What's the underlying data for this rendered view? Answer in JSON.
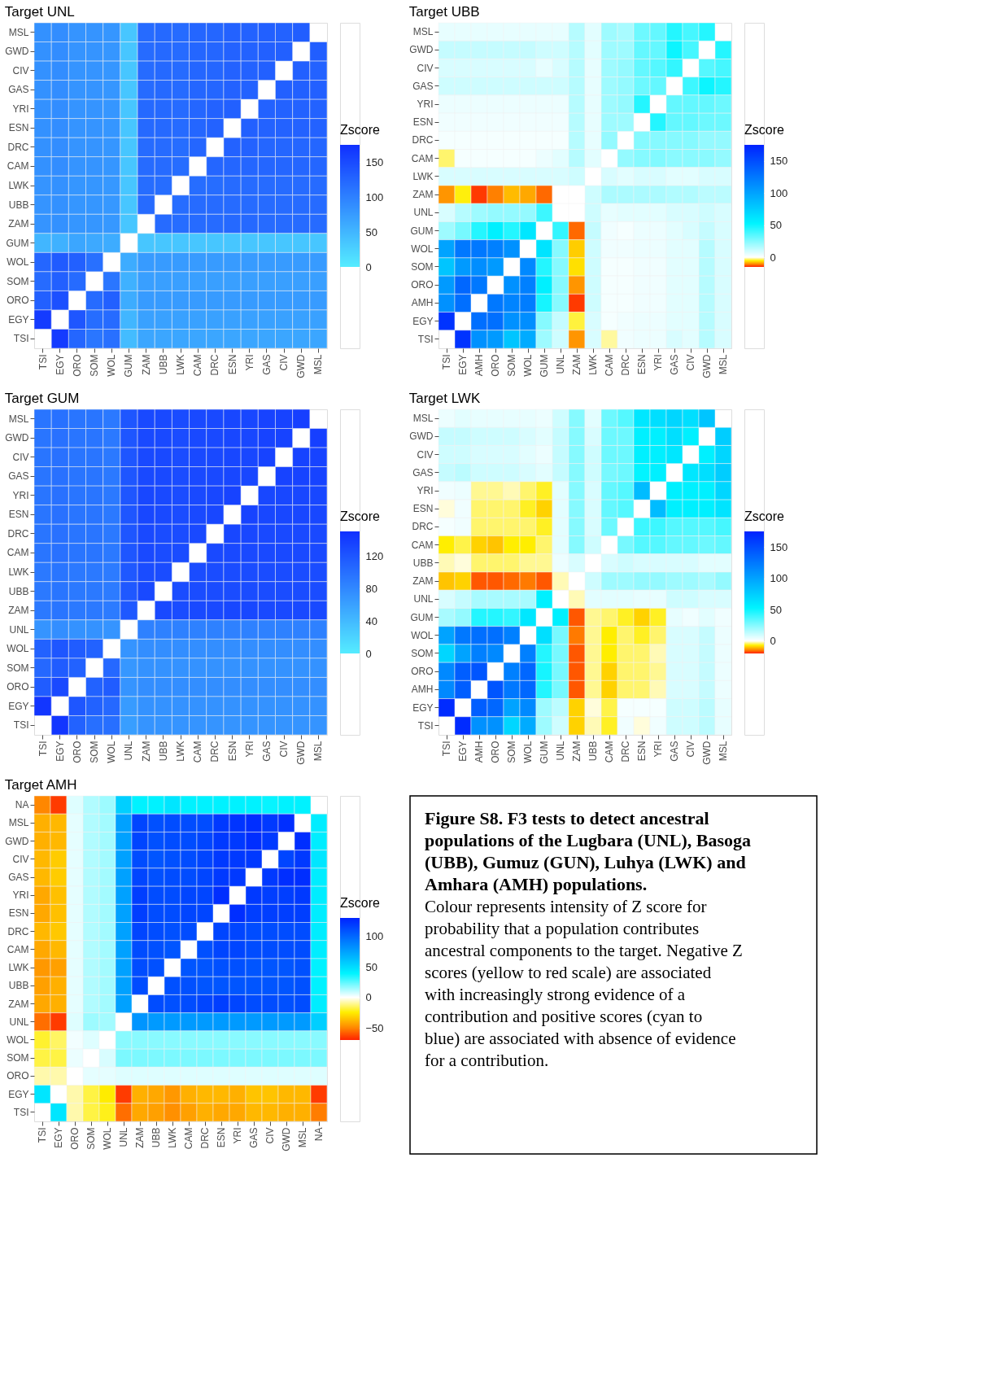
{
  "chart_data": [
    {
      "type": "heatmap",
      "title": "Target UNL",
      "clabel": "Zscore",
      "clim": [
        0,
        175
      ],
      "cticks": [
        0,
        50,
        100,
        150
      ],
      "categories": [
        "TSI",
        "EGY",
        "ORO",
        "SOM",
        "WOL",
        "GUM",
        "ZAM",
        "UBB",
        "LWK",
        "CAM",
        "DRC",
        "ESN",
        "YRI",
        "GAS",
        "CIV",
        "GWD",
        "MSL"
      ],
      "y_categories": [
        "MSL",
        "GWD",
        "CIV",
        "GAS",
        "YRI",
        "ESN",
        "DRC",
        "CAM",
        "LWK",
        "UBB",
        "ZAM",
        "GUM",
        "WOL",
        "SOM",
        "ORO",
        "EGY",
        "TSI"
      ],
      "cells": [
        [
          85,
          88,
          82,
          82,
          80,
          35,
          120,
          122,
          120,
          125,
          125,
          128,
          128,
          130,
          128,
          132,
          null
        ],
        [
          85,
          88,
          82,
          82,
          80,
          35,
          120,
          122,
          120,
          125,
          125,
          128,
          128,
          130,
          130,
          null,
          132
        ],
        [
          85,
          88,
          82,
          82,
          80,
          35,
          120,
          122,
          120,
          125,
          125,
          128,
          128,
          130,
          null,
          130,
          128
        ],
        [
          85,
          88,
          82,
          82,
          80,
          35,
          120,
          122,
          120,
          125,
          125,
          128,
          128,
          null,
          130,
          130,
          130
        ],
        [
          85,
          88,
          82,
          82,
          80,
          35,
          122,
          122,
          120,
          125,
          128,
          130,
          null,
          128,
          128,
          128,
          128
        ],
        [
          85,
          88,
          82,
          82,
          80,
          35,
          122,
          122,
          120,
          125,
          128,
          null,
          130,
          128,
          128,
          128,
          128
        ],
        [
          85,
          88,
          82,
          82,
          80,
          35,
          120,
          120,
          118,
          125,
          null,
          128,
          128,
          125,
          125,
          125,
          125
        ],
        [
          85,
          88,
          82,
          82,
          80,
          35,
          120,
          120,
          118,
          null,
          125,
          125,
          125,
          125,
          125,
          125,
          125
        ],
        [
          82,
          85,
          80,
          80,
          78,
          35,
          118,
          118,
          null,
          118,
          118,
          120,
          120,
          120,
          120,
          120,
          120
        ],
        [
          82,
          85,
          80,
          80,
          78,
          35,
          120,
          null,
          118,
          120,
          120,
          120,
          120,
          120,
          120,
          120,
          120
        ],
        [
          82,
          85,
          80,
          80,
          78,
          35,
          null,
          120,
          118,
          120,
          120,
          122,
          122,
          120,
          120,
          120,
          120
        ],
        [
          50,
          55,
          65,
          62,
          60,
          null,
          35,
          35,
          35,
          35,
          35,
          35,
          35,
          35,
          35,
          35,
          35
        ],
        [
          125,
          135,
          130,
          115,
          null,
          60,
          75,
          75,
          75,
          75,
          75,
          75,
          75,
          75,
          75,
          75,
          75
        ],
        [
          120,
          130,
          120,
          null,
          110,
          55,
          72,
          72,
          72,
          72,
          72,
          72,
          72,
          72,
          72,
          72,
          72
        ],
        [
          130,
          145,
          null,
          120,
          130,
          60,
          75,
          75,
          75,
          75,
          75,
          75,
          75,
          75,
          75,
          75,
          75
        ],
        [
          165,
          null,
          140,
          118,
          120,
          50,
          70,
          70,
          70,
          70,
          70,
          70,
          70,
          70,
          70,
          70,
          70
        ],
        [
          null,
          165,
          125,
          110,
          115,
          45,
          65,
          65,
          65,
          65,
          65,
          65,
          65,
          65,
          65,
          65,
          65
        ]
      ]
    },
    {
      "type": "heatmap",
      "title": "Target UBB",
      "clabel": "Zscore",
      "clim": [
        -15,
        175
      ],
      "cticks": [
        0,
        50,
        100,
        150
      ],
      "categories": [
        "TSI",
        "EGY",
        "AMH",
        "ORO",
        "SOM",
        "WOL",
        "GUM",
        "UNL",
        "ZAM",
        "LWK",
        "CAM",
        "DRC",
        "ESN",
        "YRI",
        "GAS",
        "CIV",
        "GWD",
        "MSL"
      ],
      "y_categories": [
        "MSL",
        "GWD",
        "CIV",
        "GAS",
        "YRI",
        "ESN",
        "DRC",
        "CAM",
        "LWK",
        "ZAM",
        "UNL",
        "GUM",
        "WOL",
        "SOM",
        "ORO",
        "AMH",
        "EGY",
        "TSI"
      ],
      "cells": [
        [
          5,
          5,
          5,
          5,
          5,
          5,
          5,
          5,
          15,
          6,
          20,
          18,
          30,
          32,
          45,
          38,
          45,
          null
        ],
        [
          12,
          12,
          12,
          12,
          12,
          12,
          10,
          10,
          15,
          6,
          20,
          20,
          32,
          32,
          50,
          38,
          null,
          45
        ],
        [
          8,
          8,
          8,
          8,
          8,
          8,
          5,
          8,
          15,
          5,
          20,
          22,
          32,
          35,
          42,
          null,
          35,
          38
        ],
        [
          10,
          10,
          10,
          10,
          10,
          10,
          10,
          10,
          15,
          5,
          20,
          22,
          30,
          32,
          null,
          40,
          50,
          45
        ],
        [
          4,
          4,
          4,
          4,
          4,
          4,
          4,
          4,
          15,
          5,
          20,
          22,
          45,
          null,
          32,
          32,
          32,
          30
        ],
        [
          3,
          3,
          3,
          3,
          3,
          3,
          3,
          3,
          15,
          5,
          20,
          20,
          null,
          45,
          32,
          32,
          30,
          30
        ],
        [
          2,
          2,
          2,
          2,
          2,
          2,
          2,
          2,
          15,
          5,
          22,
          null,
          25,
          25,
          25,
          25,
          22,
          22
        ],
        [
          -3,
          2,
          2,
          2,
          2,
          2,
          4,
          6,
          15,
          6,
          null,
          22,
          25,
          26,
          24,
          24,
          24,
          22
        ],
        [
          8,
          8,
          8,
          8,
          8,
          8,
          8,
          8,
          10,
          null,
          8,
          6,
          8,
          8,
          6,
          6,
          8,
          8
        ],
        [
          -10,
          -5,
          -14,
          -11,
          -8,
          -9,
          -12,
          0,
          null,
          10,
          17,
          17,
          17,
          17,
          16,
          16,
          14,
          14
        ],
        [
          8,
          15,
          20,
          22,
          22,
          22,
          40,
          null,
          0,
          10,
          5,
          6,
          6,
          6,
          8,
          8,
          10,
          8
        ],
        [
          20,
          28,
          45,
          55,
          45,
          60,
          null,
          42,
          -12,
          12,
          3,
          2,
          4,
          4,
          6,
          8,
          12,
          8
        ],
        [
          100,
          125,
          125,
          120,
          110,
          null,
          62,
          25,
          -7,
          10,
          3,
          3,
          4,
          4,
          6,
          6,
          15,
          8
        ],
        [
          80,
          105,
          112,
          105,
          null,
          115,
          45,
          25,
          -6,
          10,
          2,
          2,
          3,
          3,
          6,
          6,
          15,
          8
        ],
        [
          105,
          135,
          125,
          null,
          110,
          120,
          55,
          25,
          -10,
          10,
          2,
          2,
          3,
          3,
          6,
          6,
          15,
          8
        ],
        [
          110,
          130,
          null,
          125,
          118,
          122,
          48,
          25,
          -14,
          10,
          2,
          2,
          3,
          3,
          6,
          6,
          15,
          8
        ],
        [
          165,
          null,
          130,
          130,
          110,
          112,
          25,
          12,
          -4,
          8,
          2,
          3,
          4,
          4,
          6,
          6,
          15,
          8
        ],
        [
          null,
          165,
          110,
          105,
          80,
          95,
          20,
          10,
          -10,
          8,
          -2,
          3,
          4,
          4,
          8,
          6,
          15,
          8
        ]
      ]
    },
    {
      "type": "heatmap",
      "title": "Target GUM",
      "clabel": "Zscore",
      "clim": [
        0,
        150
      ],
      "cticks": [
        0,
        40,
        80,
        120
      ],
      "categories": [
        "TSI",
        "EGY",
        "ORO",
        "SOM",
        "WOL",
        "UNL",
        "ZAM",
        "UBB",
        "LWK",
        "CAM",
        "DRC",
        "ESN",
        "YRI",
        "GAS",
        "CIV",
        "GWD",
        "MSL"
      ],
      "y_categories": [
        "MSL",
        "GWD",
        "CIV",
        "GAS",
        "YRI",
        "ESN",
        "DRC",
        "CAM",
        "LWK",
        "UBB",
        "ZAM",
        "UNL",
        "WOL",
        "SOM",
        "ORO",
        "EGY",
        "TSI"
      ],
      "cells": [
        [
          95,
          98,
          95,
          95,
          92,
          120,
          130,
          130,
          128,
          130,
          130,
          132,
          132,
          135,
          135,
          138,
          null
        ],
        [
          95,
          98,
          95,
          95,
          92,
          120,
          130,
          130,
          128,
          130,
          130,
          132,
          132,
          135,
          135,
          null,
          138
        ],
        [
          95,
          98,
          95,
          95,
          92,
          120,
          130,
          130,
          128,
          130,
          130,
          132,
          132,
          135,
          null,
          135,
          135
        ],
        [
          95,
          98,
          95,
          95,
          92,
          120,
          130,
          130,
          128,
          130,
          130,
          132,
          132,
          null,
          135,
          135,
          135
        ],
        [
          95,
          98,
          95,
          95,
          92,
          120,
          132,
          130,
          128,
          130,
          132,
          135,
          null,
          132,
          132,
          132,
          132
        ],
        [
          95,
          98,
          95,
          95,
          92,
          120,
          132,
          130,
          128,
          130,
          132,
          null,
          135,
          132,
          132,
          132,
          132
        ],
        [
          95,
          98,
          95,
          95,
          92,
          120,
          130,
          128,
          128,
          130,
          null,
          132,
          132,
          130,
          130,
          130,
          130
        ],
        [
          95,
          98,
          95,
          95,
          92,
          120,
          130,
          128,
          128,
          null,
          130,
          130,
          130,
          130,
          130,
          130,
          130
        ],
        [
          92,
          95,
          92,
          92,
          90,
          118,
          128,
          128,
          null,
          128,
          128,
          128,
          128,
          128,
          128,
          128,
          128
        ],
        [
          92,
          95,
          92,
          92,
          90,
          118,
          130,
          null,
          128,
          128,
          128,
          128,
          128,
          128,
          128,
          128,
          128
        ],
        [
          92,
          95,
          92,
          92,
          90,
          118,
          null,
          130,
          128,
          130,
          130,
          132,
          132,
          130,
          130,
          130,
          130
        ],
        [
          70,
          75,
          72,
          72,
          70,
          null,
          85,
          85,
          85,
          85,
          85,
          85,
          85,
          85,
          85,
          85,
          85
        ],
        [
          110,
          120,
          115,
          110,
          null,
          70,
          75,
          75,
          75,
          75,
          75,
          75,
          75,
          75,
          75,
          75,
          75
        ],
        [
          105,
          115,
          110,
          null,
          105,
          68,
          72,
          72,
          72,
          72,
          72,
          72,
          72,
          72,
          72,
          72,
          72
        ],
        [
          115,
          130,
          null,
          110,
          115,
          70,
          75,
          75,
          75,
          75,
          75,
          75,
          75,
          75,
          75,
          75,
          75
        ],
        [
          145,
          null,
          120,
          110,
          105,
          65,
          72,
          72,
          72,
          72,
          72,
          72,
          72,
          72,
          72,
          72,
          72
        ],
        [
          null,
          145,
          110,
          100,
          100,
          62,
          70,
          70,
          70,
          70,
          70,
          70,
          70,
          70,
          70,
          70,
          70
        ]
      ]
    },
    {
      "type": "heatmap",
      "title": "Target LWK",
      "clabel": "Zscore",
      "clim": [
        -20,
        175
      ],
      "cticks": [
        0,
        50,
        100,
        150
      ],
      "categories": [
        "TSI",
        "EGY",
        "AMH",
        "ORO",
        "SOM",
        "WOL",
        "GUM",
        "UNL",
        "ZAM",
        "UBB",
        "CAM",
        "DRC",
        "ESN",
        "YRI",
        "GAS",
        "CIV",
        "GWD",
        "MSL"
      ],
      "y_categories": [
        "MSL",
        "GWD",
        "CIV",
        "GAS",
        "YRI",
        "ESN",
        "DRC",
        "CAM",
        "UBB",
        "ZAM",
        "UNL",
        "GUM",
        "WOL",
        "SOM",
        "ORO",
        "AMH",
        "EGY",
        "TSI"
      ],
      "cells": [
        [
          4,
          6,
          5,
          5,
          5,
          5,
          4,
          10,
          25,
          6,
          30,
          35,
          60,
          65,
          70,
          65,
          80,
          null
        ],
        [
          12,
          12,
          10,
          10,
          10,
          8,
          6,
          12,
          25,
          8,
          30,
          30,
          55,
          55,
          65,
          55,
          null,
          75
        ],
        [
          10,
          10,
          8,
          8,
          8,
          6,
          4,
          12,
          25,
          10,
          30,
          30,
          55,
          55,
          60,
          null,
          55,
          70
        ],
        [
          12,
          14,
          10,
          10,
          10,
          8,
          6,
          12,
          25,
          10,
          28,
          30,
          52,
          55,
          null,
          60,
          65,
          75
        ],
        [
          3,
          4,
          -3,
          -3,
          -2,
          -4,
          -6,
          6,
          25,
          8,
          32,
          35,
          85,
          null,
          55,
          55,
          55,
          70
        ],
        [
          -1,
          3,
          -4,
          -4,
          -4,
          -6,
          -9,
          6,
          25,
          8,
          32,
          35,
          null,
          85,
          55,
          55,
          55,
          62
        ],
        [
          2,
          3,
          -4,
          -4,
          -4,
          -4,
          -6,
          6,
          25,
          8,
          30,
          null,
          40,
          40,
          35,
          35,
          35,
          38
        ],
        [
          -7,
          -5,
          -9,
          -10,
          -7,
          -7,
          -4,
          6,
          25,
          10,
          null,
          28,
          35,
          35,
          32,
          32,
          30,
          32
        ],
        [
          -2,
          -1,
          -4,
          -4,
          -4,
          -3,
          -3,
          4,
          8,
          null,
          8,
          10,
          8,
          8,
          8,
          8,
          6,
          6
        ],
        [
          -10,
          -9,
          -17,
          -17,
          -16,
          -15,
          -17,
          -2,
          null,
          10,
          20,
          20,
          22,
          22,
          20,
          20,
          18,
          22
        ],
        [
          8,
          12,
          18,
          18,
          18,
          18,
          55,
          null,
          -2,
          6,
          6,
          6,
          5,
          5,
          10,
          10,
          8,
          8
        ],
        [
          18,
          22,
          45,
          45,
          42,
          60,
          null,
          55,
          -17,
          -3,
          -4,
          -6,
          -9,
          -6,
          5,
          3,
          6,
          3
        ],
        [
          100,
          125,
          130,
          130,
          120,
          null,
          65,
          28,
          -15,
          -3,
          -7,
          -4,
          -6,
          -4,
          8,
          8,
          12,
          4
        ],
        [
          70,
          100,
          120,
          115,
          null,
          120,
          45,
          28,
          -17,
          -3,
          -7,
          -4,
          -4,
          -2,
          8,
          8,
          12,
          4
        ],
        [
          115,
          140,
          145,
          null,
          120,
          135,
          48,
          28,
          -17,
          -3,
          -9,
          -4,
          -4,
          -3,
          8,
          8,
          12,
          4
        ],
        [
          115,
          140,
          null,
          145,
          125,
          135,
          45,
          28,
          -17,
          -3,
          -9,
          -4,
          -4,
          -2,
          8,
          8,
          12,
          4
        ],
        [
          170,
          null,
          140,
          135,
          100,
          115,
          20,
          14,
          -9,
          -1,
          -5,
          2,
          2,
          2,
          10,
          10,
          14,
          5
        ],
        [
          null,
          170,
          110,
          110,
          70,
          95,
          20,
          10,
          -9,
          -2,
          -6,
          3,
          -1,
          3,
          10,
          10,
          14,
          5
        ]
      ]
    },
    {
      "type": "heatmap",
      "title": "Target AMH",
      "clabel": "Zscore",
      "clim": [
        -70,
        130
      ],
      "cticks": [
        -50,
        0,
        50,
        100
      ],
      "categories": [
        "TSI",
        "EGY",
        "ORO",
        "SOM",
        "WOL",
        "UNL",
        "ZAM",
        "UBB",
        "LWK",
        "CAM",
        "DRC",
        "ESN",
        "YRI",
        "GAS",
        "CIV",
        "GWD",
        "MSL",
        "NA"
      ],
      "y_categories": [
        "NA",
        "MSL",
        "GWD",
        "CIV",
        "GAS",
        "YRI",
        "ESN",
        "DRC",
        "CAM",
        "LWK",
        "UBB",
        "ZAM",
        "UNL",
        "WOL",
        "SOM",
        "ORO",
        "EGY",
        "TSI"
      ],
      "cells": [
        [
          -50,
          -65,
          5,
          12,
          15,
          55,
          40,
          40,
          45,
          40,
          40,
          40,
          40,
          40,
          38,
          40,
          40,
          null
        ],
        [
          -40,
          -38,
          4,
          12,
          14,
          75,
          115,
          110,
          112,
          112,
          112,
          120,
          122,
          125,
          120,
          125,
          null,
          42
        ],
        [
          -40,
          -38,
          4,
          12,
          14,
          75,
          115,
          110,
          112,
          112,
          115,
          120,
          120,
          125,
          120,
          null,
          125,
          42
        ],
        [
          -38,
          -33,
          4,
          12,
          14,
          75,
          112,
          108,
          110,
          112,
          115,
          120,
          120,
          120,
          null,
          115,
          120,
          45
        ],
        [
          -38,
          -33,
          4,
          12,
          14,
          75,
          115,
          110,
          112,
          112,
          115,
          120,
          120,
          null,
          120,
          125,
          125,
          42
        ],
        [
          -42,
          -36,
          4,
          12,
          14,
          75,
          118,
          112,
          112,
          115,
          115,
          125,
          null,
          120,
          118,
          118,
          120,
          42
        ],
        [
          -42,
          -36,
          4,
          12,
          14,
          75,
          118,
          112,
          112,
          115,
          115,
          null,
          125,
          118,
          118,
          118,
          118,
          42
        ],
        [
          -38,
          -34,
          4,
          12,
          14,
          75,
          115,
          112,
          110,
          112,
          null,
          115,
          115,
          112,
          112,
          112,
          112,
          42
        ],
        [
          -42,
          -38,
          4,
          12,
          14,
          75,
          112,
          110,
          108,
          null,
          110,
          115,
          115,
          112,
          112,
          112,
          112,
          42
        ],
        [
          -46,
          -44,
          4,
          12,
          14,
          75,
          112,
          110,
          null,
          108,
          108,
          110,
          110,
          108,
          108,
          108,
          110,
          40
        ],
        [
          -44,
          -40,
          4,
          12,
          14,
          75,
          112,
          null,
          110,
          110,
          108,
          108,
          108,
          108,
          108,
          108,
          110,
          40
        ],
        [
          -42,
          -40,
          4,
          12,
          14,
          75,
          null,
          112,
          110,
          112,
          115,
          118,
          115,
          112,
          112,
          110,
          112,
          42
        ],
        [
          -55,
          -65,
          5,
          15,
          14,
          null,
          80,
          78,
          78,
          78,
          78,
          78,
          78,
          78,
          78,
          78,
          78,
          55
        ],
        [
          -20,
          -15,
          2,
          5,
          null,
          18,
          18,
          18,
          18,
          18,
          18,
          18,
          18,
          18,
          18,
          18,
          18,
          18
        ],
        [
          -18,
          -18,
          3,
          null,
          6,
          20,
          20,
          20,
          20,
          20,
          20,
          20,
          20,
          20,
          20,
          20,
          20,
          20
        ],
        [
          -8,
          -8,
          null,
          4,
          4,
          5,
          5,
          5,
          5,
          5,
          5,
          5,
          5,
          5,
          5,
          5,
          5,
          5
        ],
        [
          45,
          null,
          -8,
          -18,
          -25,
          -65,
          -40,
          -42,
          -46,
          -40,
          -38,
          -38,
          -40,
          -35,
          -35,
          -38,
          -38,
          -65
        ],
        [
          null,
          45,
          -8,
          -18,
          -22,
          -55,
          -42,
          -44,
          -48,
          -44,
          -40,
          -42,
          -42,
          -38,
          -38,
          -40,
          -40,
          -52
        ]
      ]
    },
    {
      "type": "other",
      "annotations": [
        "Figure S8. F3 tests to detect ancestral populations of the Lugbara (UNL), Basoga (UBB), Gumuz (GUN), Luhya (LWK) and Amhara (AMH) populations.",
        "Colour represents intensity of Z score for probability that a population contributes ancestral components to the target. Negative Z scores (yellow to red scale) are associated with increasingly strong evidence of a contribution and positive scores (cyan to blue) are associated with absence of evidence for a contribution."
      ]
    }
  ]
}
